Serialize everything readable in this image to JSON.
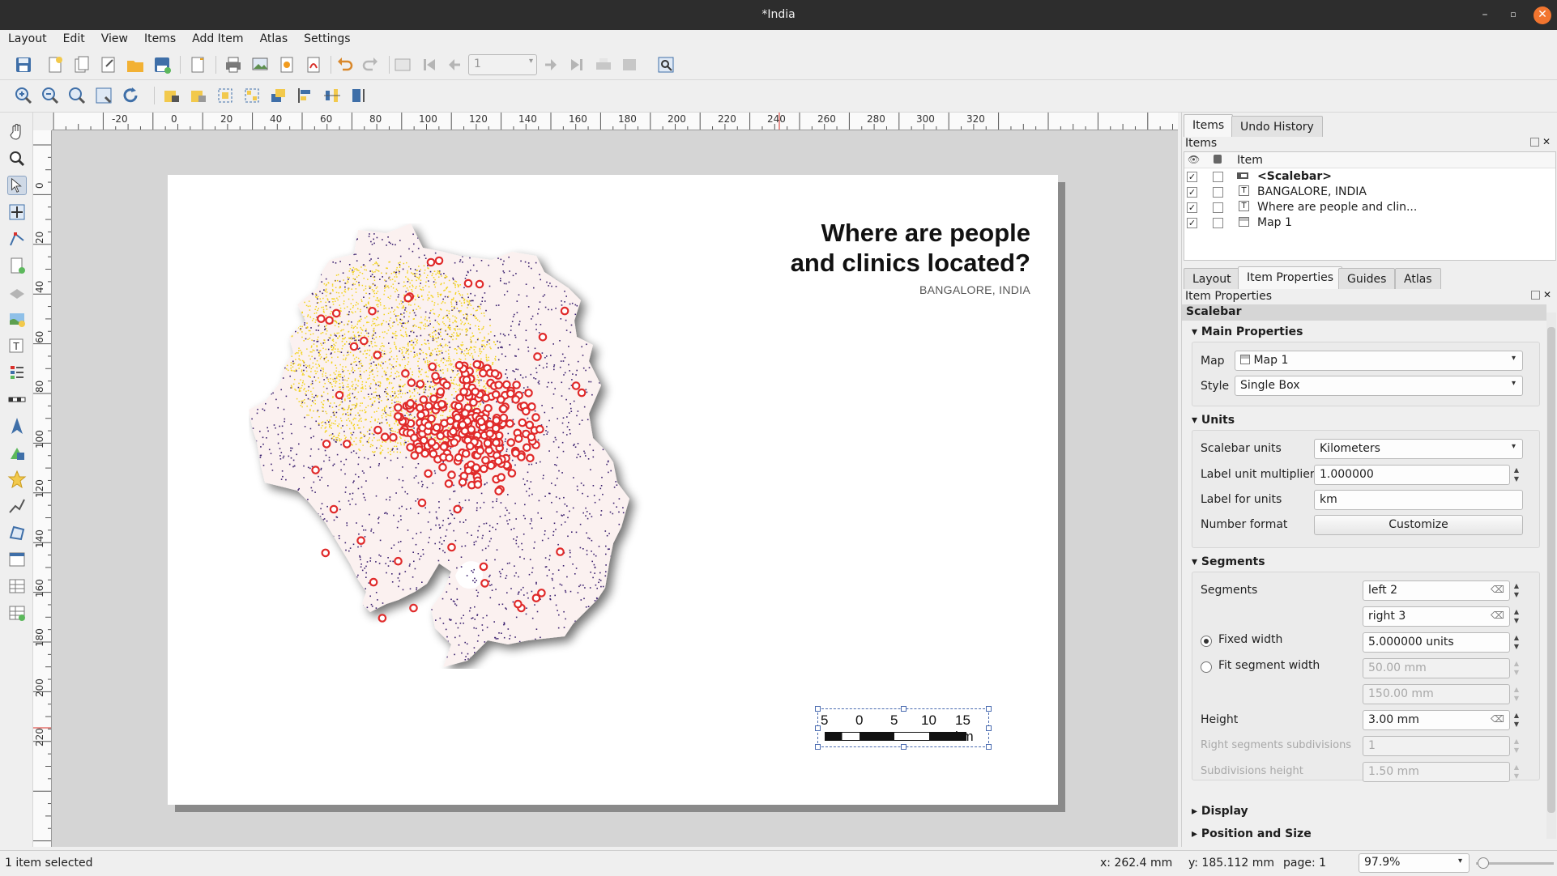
{
  "window": {
    "title": "*India",
    "close_glyph": "✕",
    "minimize_glyph": "–",
    "maximize_glyph": "▫"
  },
  "menu": [
    "Layout",
    "Edit",
    "View",
    "Items",
    "Add Item",
    "Atlas",
    "Settings"
  ],
  "toolbar": {
    "page_value": "1"
  },
  "rulers": {
    "top_ticks": [
      "-20",
      "0",
      "20",
      "40",
      "60",
      "80",
      "100",
      "120",
      "140",
      "160",
      "180",
      "200",
      "220",
      "240",
      "260",
      "280",
      "300",
      "320"
    ],
    "left_ticks": [
      "0",
      "20",
      "40",
      "60",
      "80",
      "100",
      "120",
      "140",
      "160",
      "180",
      "200",
      "220"
    ]
  },
  "layout_page": {
    "title_line1": "Where are people",
    "title_line2": "and clinics located?",
    "subtitle": "BANGALORE, INDIA",
    "scalebar_labels": [
      "5",
      "0",
      "5",
      "10",
      "15 km"
    ],
    "colors": {
      "people_dense": "#f2d21a",
      "people_sparse": "#3a1f6e",
      "clinics": "#e02a2a",
      "land": "#fbf1f0"
    }
  },
  "dock": {
    "top_tabs": [
      "Items",
      "Undo History"
    ],
    "items_panel_title": "Items",
    "items_header": "Item",
    "items": [
      {
        "label": "<Scalebar>",
        "visible": true,
        "locked": false,
        "bold": true,
        "icon": "scalebar-item-icon"
      },
      {
        "label": "BANGALORE, INDIA",
        "visible": true,
        "locked": false,
        "bold": false,
        "icon": "label-item-icon"
      },
      {
        "label": "Where are people and clin...",
        "visible": true,
        "locked": false,
        "bold": false,
        "icon": "label-item-icon"
      },
      {
        "label": "Map 1",
        "visible": true,
        "locked": false,
        "bold": false,
        "icon": "map-item-icon"
      }
    ],
    "prop_tabs": [
      "Layout",
      "Item Properties",
      "Guides",
      "Atlas"
    ],
    "props_panel_title": "Item Properties",
    "item_type": "Scalebar",
    "main_properties": {
      "header": "Main Properties",
      "map_label": "Map",
      "map_value": "Map 1",
      "style_label": "Style",
      "style_value": "Single Box"
    },
    "units": {
      "header": "Units",
      "scalebar_units_label": "Scalebar units",
      "scalebar_units_value": "Kilometers",
      "multiplier_label": "Label unit multiplier",
      "multiplier_value": "1.000000",
      "label_units_label": "Label for units",
      "label_units_value": "km",
      "number_format_label": "Number format",
      "customize_label": "Customize"
    },
    "segments": {
      "header": "Segments",
      "segments_label": "Segments",
      "left_value": "left 2",
      "right_value": "right 3",
      "fixed_width_label": "Fixed width",
      "fixed_width_value": "5.000000 units",
      "fit_width_label": "Fit segment width",
      "fit_min_value": "50.00 mm",
      "fit_max_value": "150.00 mm",
      "height_label": "Height",
      "height_value": "3.00 mm",
      "right_subdiv_label": "Right segments subdivisions",
      "right_subdiv_value": "1",
      "subdiv_height_label": "Subdivisions height",
      "subdiv_height_value": "1.50 mm"
    },
    "display_header": "Display",
    "position_header": "Position and Size"
  },
  "status": {
    "selection": "1 item selected",
    "x": "x: 262.4 mm",
    "y": "y: 185.112 mm",
    "page": "page: 1",
    "zoom": "97.9%"
  }
}
